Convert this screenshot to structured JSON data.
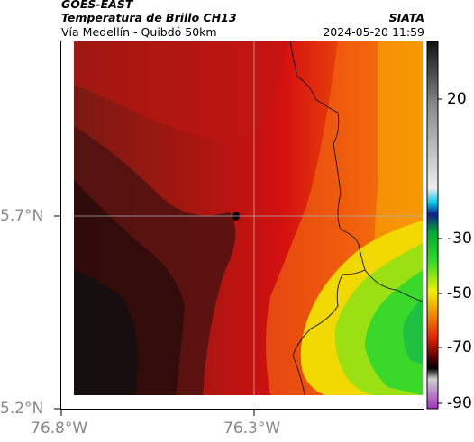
{
  "header": {
    "source": "GOES-EAST",
    "product": "Temperatura de Brillo CH13",
    "region": "Vía Medellín - Quibdó 50km",
    "agency": "SIATA",
    "timestamp": "2024-05-20 11:59"
  },
  "map": {
    "lat_ticks": [
      "5.7°N",
      "5.2°N"
    ],
    "lon_ticks": [
      "76.8°W",
      "76.3°W"
    ],
    "colors": {
      "very_cold_black": "#111111",
      "dark_red": "#5a1010",
      "red": "#d01010",
      "orange": "#f06010",
      "yellow": "#f0e000",
      "green": "#20d020",
      "border_line": "#111111",
      "gridline": "#b0b0b0"
    }
  },
  "colorbar": {
    "ticks": [
      "20",
      "-30",
      "-50",
      "-70",
      "-90"
    ],
    "colors": [
      "#ff00ff",
      "#808080",
      "#000000",
      "#8b0000",
      "#ff0000",
      "#ff8c00",
      "#ffff00",
      "#00cc00",
      "#003399",
      "#00ccff",
      "#e0e0e0",
      "#000000"
    ]
  }
}
